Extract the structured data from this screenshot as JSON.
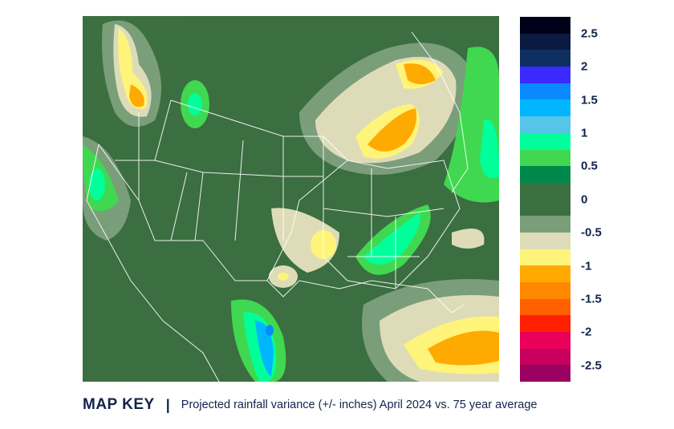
{
  "legend": {
    "bands": [
      "#000018",
      "#0a1a40",
      "#0d3060",
      "#3a2aff",
      "#0a8aff",
      "#00b6ff",
      "#55c6e8",
      "#00ff9a",
      "#40d850",
      "#00884a",
      "#3d7040",
      "#3b6e41",
      "#7a9e7a",
      "#dedcb8",
      "#fff47a",
      "#ffaa00",
      "#ff8800",
      "#ff6000",
      "#ff2000",
      "#e8005a",
      "#c8005e",
      "#9a0060"
    ],
    "labels": [
      "2.5",
      "2",
      "1.5",
      "1",
      "0.5",
      "0",
      "-0.5",
      "-1",
      "-1.5",
      "-2",
      "-2.5"
    ]
  },
  "caption": {
    "title": "MAP KEY",
    "separator": "|",
    "description": "Projected rainfall variance (+/- inches) April 2024 vs. 75 year average"
  }
}
